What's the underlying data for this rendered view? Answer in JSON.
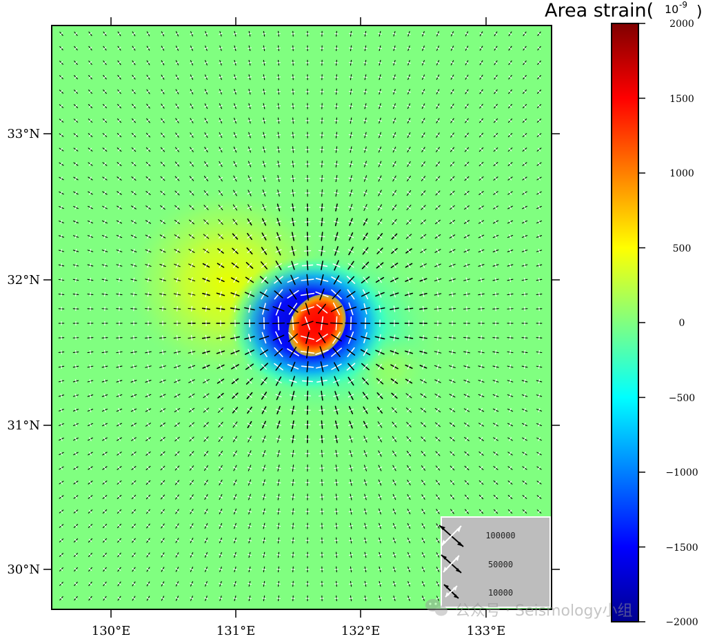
{
  "colorbar": {
    "title": "Area strain(",
    "unit_base": "10",
    "unit_exp": "-9",
    "unit_close": ")",
    "ticks": [
      "2000",
      "1500",
      "1000",
      "500",
      "0",
      "−500",
      "−1000",
      "−1500",
      "−2000"
    ],
    "range": [
      -2000,
      2000
    ],
    "colors": [
      "#00008f",
      "#0000ff",
      "#00ffff",
      "#80ff80",
      "#ffff00",
      "#ff0000",
      "#800000"
    ]
  },
  "map": {
    "lon_labels": [
      "130°E",
      "131°E",
      "132°E",
      "133°E"
    ],
    "lon_values": [
      130,
      131,
      132,
      133
    ],
    "lat_labels": [
      "33°N",
      "32°N",
      "31°N",
      "30°N"
    ],
    "lat_values": [
      33,
      32,
      31,
      30
    ],
    "lon_range": [
      129.52,
      133.52
    ],
    "lat_range": [
      29.73,
      33.73
    ],
    "background_color": "#80ff80",
    "anomaly_center": [
      131.6,
      31.7
    ]
  },
  "legend": {
    "labels": [
      "100000",
      "50000",
      "10000"
    ]
  },
  "watermark": {
    "text": "公众号 · Seismology小组"
  }
}
